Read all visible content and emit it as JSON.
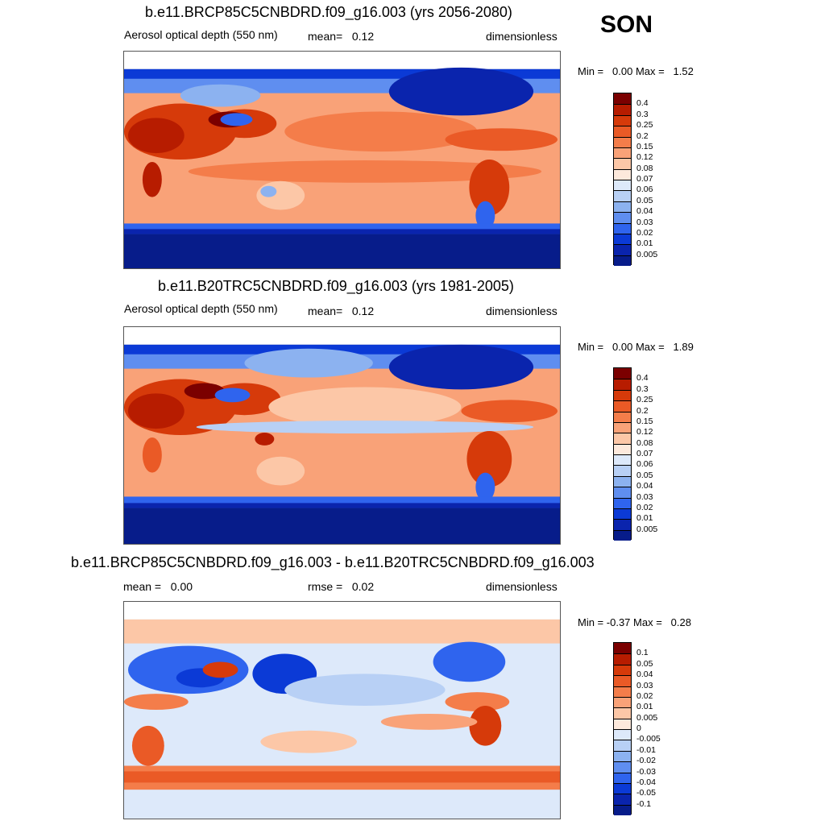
{
  "season": "SON",
  "units": "dimensionless",
  "panels": [
    {
      "title": "b.e11.BRCP85C5CNBDRD.f09_g16.003 (yrs 2056-2080)",
      "variable": "Aerosol optical depth (550 nm)",
      "mean_label": "mean=",
      "mean_value": "0.12",
      "min_label": "Min =",
      "min_value": "0.00",
      "max_label": "Max =",
      "max_value": "1.52"
    },
    {
      "title": "b.e11.B20TRC5CNBDRD.f09_g16.003 (yrs 1981-2005)",
      "variable": "Aerosol optical depth (550 nm)",
      "mean_label": "mean=",
      "mean_value": "0.12",
      "min_label": "Min =",
      "min_value": "0.00",
      "max_label": "Max =",
      "max_value": "1.89"
    },
    {
      "title": "b.e11.BRCP85C5CNBDRD.f09_g16.003 - b.e11.B20TRC5CNBDRD.f09_g16.003",
      "mean_label": "mean =",
      "mean_value": "0.00",
      "rmse_label": "rmse =",
      "rmse_value": "0.02",
      "min_label": "Min =",
      "min_value": "-0.37",
      "max_label": "Max =",
      "max_value": "0.28"
    }
  ],
  "colorbar_abs": {
    "labels": [
      "0.4",
      "0.3",
      "0.25",
      "0.2",
      "0.15",
      "0.12",
      "0.08",
      "0.07",
      "0.06",
      "0.05",
      "0.04",
      "0.03",
      "0.02",
      "0.01",
      "0.005"
    ],
    "colors": [
      "#7b0000",
      "#b71c00",
      "#d63a0a",
      "#ea5a26",
      "#f47d4a",
      "#f9a278",
      "#fcc7a7",
      "#fde9dc",
      "#dde9fa",
      "#b8d0f5",
      "#8cb2f0",
      "#5f8ef0",
      "#2f64ee",
      "#0b3ad6",
      "#0a24ad",
      "#071c8a"
    ]
  },
  "colorbar_diff": {
    "labels": [
      "0.1",
      "0.05",
      "0.04",
      "0.03",
      "0.02",
      "0.01",
      "0.005",
      "0",
      "-0.005",
      "-0.01",
      "-0.02",
      "-0.03",
      "-0.04",
      "-0.05",
      "-0.1"
    ],
    "colors": [
      "#7b0000",
      "#b71c00",
      "#d63a0a",
      "#ea5a26",
      "#f47d4a",
      "#f9a278",
      "#fcc7a7",
      "#fde9dc",
      "#dde9fa",
      "#b8d0f5",
      "#8cb2f0",
      "#5f8ef0",
      "#2f64ee",
      "#0b3ad6",
      "#0a24ad",
      "#071c8a"
    ]
  }
}
